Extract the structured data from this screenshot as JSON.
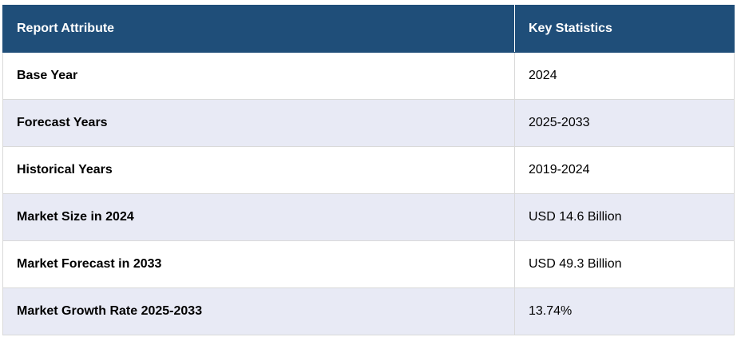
{
  "table": {
    "headers": [
      "Report Attribute",
      "Key Statistics"
    ],
    "rows": [
      {
        "attribute": "Base Year",
        "value": "2024"
      },
      {
        "attribute": "Forecast Years",
        "value": "2025-2033"
      },
      {
        "attribute": "Historical Years",
        "value": "2019-2024"
      },
      {
        "attribute": "Market Size in 2024",
        "value": "USD 14.6 Billion"
      },
      {
        "attribute": "Market Forecast in 2033",
        "value": "USD 49.3 Billion"
      },
      {
        "attribute": "Market Growth Rate 2025-2033",
        "value": "13.74%"
      }
    ],
    "colors": {
      "header_bg": "#1f4e79",
      "header_text": "#ffffff",
      "stripe_bg": "#e8eaf5",
      "border": "#d9d9d9"
    }
  }
}
